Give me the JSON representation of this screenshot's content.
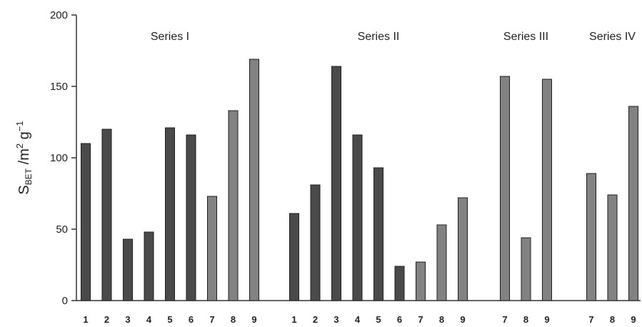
{
  "chart_data": {
    "type": "bar",
    "ylabel": {
      "main": "S",
      "sub": "BET",
      "unit_prefix": " /m",
      "sup1": "2",
      "mid": " g",
      "sup2": "−1"
    },
    "ylim": [
      0,
      200
    ],
    "yticks": [
      "0",
      "50",
      "100",
      "150",
      "200"
    ],
    "grid": false,
    "legend": "none",
    "colors": {
      "dark": "#4a4a4a",
      "medium": "#828282",
      "axis": "#333333"
    },
    "groups": [
      {
        "name": "Series I",
        "categories": [
          "1",
          "2",
          "3",
          "4",
          "5",
          "6",
          "7",
          "8",
          "9"
        ],
        "values": [
          110,
          120,
          43,
          48,
          121,
          116,
          73,
          133,
          169
        ],
        "shades": [
          "dark",
          "dark",
          "dark",
          "dark",
          "dark",
          "dark",
          "medium",
          "medium",
          "medium"
        ]
      },
      {
        "name": "Series II",
        "categories": [
          "1",
          "2",
          "3",
          "4",
          "5",
          "6",
          "7",
          "8",
          "9"
        ],
        "values": [
          61,
          81,
          164,
          116,
          93,
          24,
          27,
          53,
          72
        ],
        "shades": [
          "dark",
          "dark",
          "dark",
          "dark",
          "dark",
          "dark",
          "medium",
          "medium",
          "medium"
        ]
      },
      {
        "name": "Series III",
        "categories": [
          "7",
          "8",
          "9"
        ],
        "values": [
          157,
          44,
          155
        ],
        "shades": [
          "medium",
          "medium",
          "medium"
        ]
      },
      {
        "name": "Series IV",
        "categories": [
          "7",
          "8",
          "9"
        ],
        "values": [
          89,
          74,
          136
        ],
        "shades": [
          "medium",
          "medium",
          "medium"
        ]
      }
    ]
  }
}
